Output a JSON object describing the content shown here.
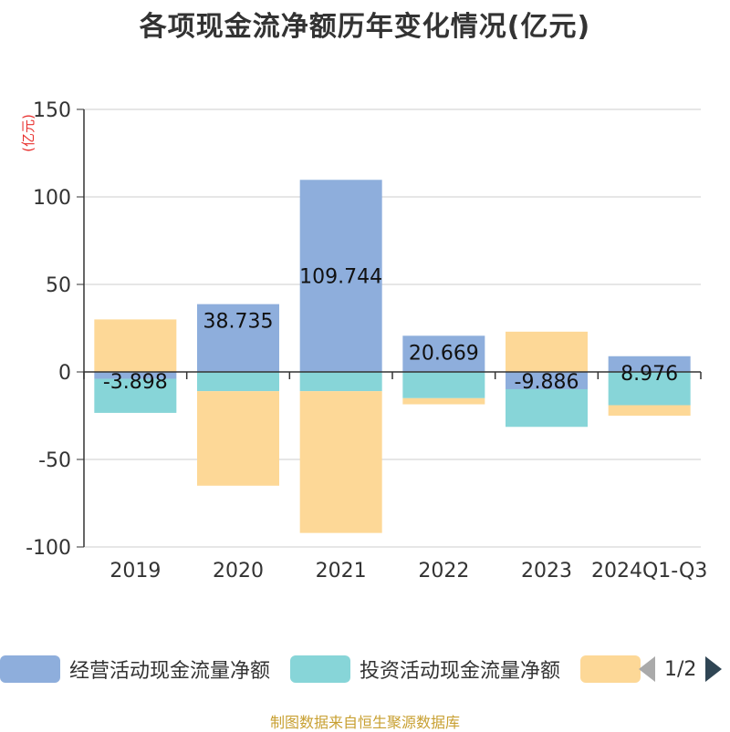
{
  "chart_data": {
    "type": "bar",
    "stacked": true,
    "title": "各项现金流净额历年变化情况(亿元)",
    "ylabel": "(亿元)",
    "ylim": [
      -100,
      150
    ],
    "yticks": [
      150,
      100,
      50,
      0,
      -50,
      -100
    ],
    "categories": [
      "2019",
      "2020",
      "2021",
      "2022",
      "2023",
      "2024Q1-Q3"
    ],
    "series": [
      {
        "name": "经营活动现金流量净额",
        "color": "#8eaedc",
        "values": [
          -3.898,
          38.735,
          109.744,
          20.669,
          -9.886,
          8.976
        ]
      },
      {
        "name": "投资活动现金流量净额",
        "color": "#87d5d8",
        "values": [
          -19.5,
          -11,
          -11,
          -15,
          -21.5,
          -19
        ]
      },
      {
        "name": "",
        "color": "#fdd897",
        "values": [
          30,
          -54,
          -81,
          -3.5,
          23,
          -6
        ]
      }
    ],
    "data_labels": [
      "-3.898",
      "38.735",
      "109.744",
      "20.669",
      "-9.886",
      "8.976"
    ],
    "grid": true
  },
  "legend": {
    "items": [
      "经营活动现金流量净额",
      "投资活动现金流量净额",
      ""
    ],
    "pager": "1/2"
  },
  "footer": "制图数据来自恒生聚源数据库"
}
